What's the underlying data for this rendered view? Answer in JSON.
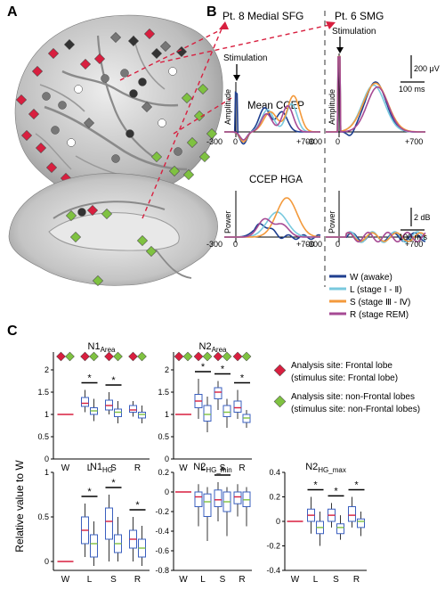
{
  "panels": {
    "a": "A",
    "b": "B",
    "c": "C"
  },
  "panel_b": {
    "site_left": "Pt. 8 Medial SFG",
    "site_right": "Pt. 6 SMG",
    "stimulation": "Stimulation",
    "mean_title": "Mean CCEP",
    "hga_title": "CCEP HGA",
    "amp_label": "Amplitude",
    "power_label": "Power",
    "t_start": "-300",
    "t_zero": "0",
    "t_end": "+700",
    "scale_amp": "200 μV",
    "scale_time_top": "100 ms",
    "scale_db": "2 dB",
    "scale_time_bottom": "100 m s"
  },
  "legend_stages": [
    {
      "label": "W (awake)",
      "color": "#1f3f8f"
    },
    {
      "label": "L (stage Ⅰ - Ⅱ)",
      "color": "#79c9de"
    },
    {
      "label": "S (stage Ⅲ - Ⅳ)",
      "color": "#f39a3c"
    },
    {
      "label": "R (stage REM)",
      "color": "#a64a94"
    }
  ],
  "legend_sites": [
    {
      "line1": "Analysis site: Frontal lobe",
      "line2": "(stimulus site: Frontal lobe)",
      "color": "#d81f3f"
    },
    {
      "line1": "Analysis site: non-Frontal lobes",
      "line2": "(stimulus site: non-Frontal lobes)",
      "color": "#7fc241"
    }
  ],
  "y_axis_label": "Relative value to W",
  "chart_data": [
    {
      "type": "box",
      "title_main": "N1",
      "title_sub": "Area",
      "categories": [
        "W",
        "L",
        "S",
        "R"
      ],
      "ylim": [
        0,
        2.4
      ],
      "yticks": [
        0,
        0.5,
        1,
        1.5,
        2
      ],
      "series": [
        {
          "color": "#d81f3f",
          "boxes": [
            [
              1.05,
              1.18,
              1.25,
              1.38,
              1.55
            ],
            [
              1.0,
              1.1,
              1.2,
              1.32,
              1.5
            ],
            [
              0.95,
              1.05,
              1.1,
              1.2,
              1.3
            ]
          ]
        },
        {
          "color": "#7fc241",
          "boxes": [
            [
              0.85,
              1.0,
              1.08,
              1.15,
              1.35
            ],
            [
              0.8,
              0.95,
              1.05,
              1.12,
              1.3
            ],
            [
              0.8,
              0.92,
              1.0,
              1.05,
              1.2
            ]
          ]
        }
      ],
      "significance": [
        true,
        true,
        false
      ]
    },
    {
      "type": "box",
      "title_main": "N2",
      "title_sub": "Area",
      "categories": [
        "W",
        "L",
        "S",
        "R"
      ],
      "ylim": [
        0,
        2.4
      ],
      "yticks": [
        0,
        0.5,
        1,
        1.5,
        2
      ],
      "series": [
        {
          "color": "#d81f3f",
          "boxes": [
            [
              0.9,
              1.15,
              1.3,
              1.45,
              1.8
            ],
            [
              1.1,
              1.35,
              1.5,
              1.6,
              1.75
            ],
            [
              0.9,
              1.05,
              1.15,
              1.3,
              1.55
            ]
          ]
        },
        {
          "color": "#7fc241",
          "boxes": [
            [
              0.6,
              0.85,
              1.0,
              1.2,
              1.4
            ],
            [
              0.7,
              0.95,
              1.05,
              1.2,
              1.35
            ],
            [
              0.7,
              0.82,
              0.92,
              1.0,
              1.1
            ]
          ]
        }
      ],
      "significance": [
        true,
        true,
        true
      ]
    },
    {
      "type": "box",
      "title_main": "N1",
      "title_sub": "HG",
      "categories": [
        "W",
        "L",
        "S",
        "R"
      ],
      "ylim": [
        -0.1,
        1.0
      ],
      "yticks": [
        0,
        0.5,
        1.0
      ],
      "series": [
        {
          "color": "#d81f3f",
          "boxes": [
            [
              0.05,
              0.2,
              0.35,
              0.5,
              0.65
            ],
            [
              0.0,
              0.25,
              0.45,
              0.6,
              0.75
            ],
            [
              0.0,
              0.15,
              0.25,
              0.35,
              0.5
            ]
          ]
        },
        {
          "color": "#7fc241",
          "boxes": [
            [
              -0.05,
              0.05,
              0.2,
              0.3,
              0.45
            ],
            [
              0.0,
              0.1,
              0.2,
              0.3,
              0.5
            ],
            [
              -0.05,
              0.05,
              0.15,
              0.25,
              0.4
            ]
          ]
        }
      ],
      "significance": [
        true,
        true,
        true
      ]
    },
    {
      "type": "box",
      "title_main": "N2",
      "title_sub": "HG_min",
      "categories": [
        "W",
        "L",
        "S",
        "R"
      ],
      "ylim": [
        -0.8,
        0.2
      ],
      "yticks": [
        -0.8,
        -0.6,
        -0.4,
        -0.2,
        0,
        0.2
      ],
      "series": [
        {
          "color": "#d81f3f",
          "boxes": [
            [
              -0.35,
              -0.15,
              -0.05,
              0.0,
              0.08
            ],
            [
              -0.3,
              -0.15,
              -0.08,
              0.02,
              0.1
            ],
            [
              -0.25,
              -0.12,
              -0.05,
              0.0,
              0.08
            ]
          ]
        },
        {
          "color": "#7fc241",
          "boxes": [
            [
              -0.5,
              -0.25,
              -0.1,
              -0.02,
              0.05
            ],
            [
              -0.45,
              -0.2,
              -0.1,
              0.0,
              0.05
            ],
            [
              -0.35,
              -0.15,
              -0.08,
              0.0,
              0.05
            ]
          ]
        }
      ],
      "significance": [
        false,
        true,
        false
      ]
    },
    {
      "type": "box",
      "title_main": "N2",
      "title_sub": "HG_max",
      "categories": [
        "W",
        "L",
        "S",
        "R"
      ],
      "ylim": [
        -0.4,
        0.4
      ],
      "yticks": [
        -0.4,
        -0.2,
        0,
        0.2,
        0.4
      ],
      "series": [
        {
          "color": "#d81f3f",
          "boxes": [
            [
              -0.1,
              0.0,
              0.05,
              0.1,
              0.2
            ],
            [
              -0.05,
              0.0,
              0.05,
              0.1,
              0.15
            ],
            [
              -0.05,
              0.0,
              0.05,
              0.12,
              0.2
            ]
          ]
        },
        {
          "color": "#7fc241",
          "boxes": [
            [
              -0.2,
              -0.1,
              -0.05,
              0.0,
              0.08
            ],
            [
              -0.15,
              -0.1,
              -0.05,
              -0.02,
              0.05
            ],
            [
              -0.12,
              -0.05,
              0.0,
              0.02,
              0.08
            ]
          ]
        }
      ],
      "significance": [
        true,
        true,
        true
      ]
    }
  ]
}
